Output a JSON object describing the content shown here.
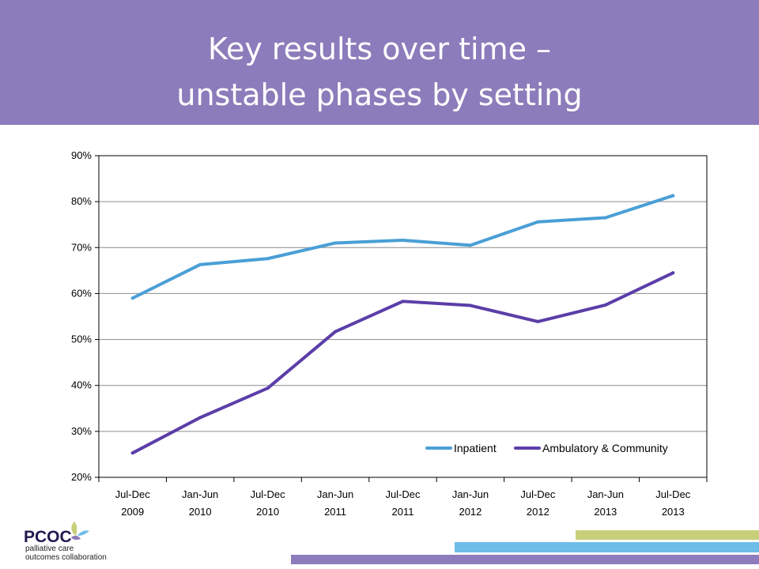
{
  "header": {
    "title_line1": "Key results over time –",
    "title_line2": "unstable phases by setting",
    "background": "#8d7cbb"
  },
  "chart_data": {
    "type": "line",
    "categories": [
      [
        "Jul-Dec",
        "2009"
      ],
      [
        "Jan-Jun",
        "2010"
      ],
      [
        "Jul-Dec",
        "2010"
      ],
      [
        "Jan-Jun",
        "2011"
      ],
      [
        "Jul-Dec",
        "2011"
      ],
      [
        "Jan-Jun",
        "2012"
      ],
      [
        "Jul-Dec",
        "2012"
      ],
      [
        "Jan-Jun",
        "2013"
      ],
      [
        "Jul-Dec",
        "2013"
      ]
    ],
    "series": [
      {
        "name": "Inpatient",
        "color": "#4a9fd6",
        "values": [
          59,
          66.3,
          67.6,
          71,
          71.6,
          70.5,
          75.6,
          76.5,
          81.3
        ]
      },
      {
        "name": "Ambulatory & Community",
        "color": "#5b3ea8",
        "values": [
          25.3,
          33,
          39.4,
          51.7,
          58.3,
          57.4,
          53.9,
          57.5,
          64.5
        ]
      }
    ],
    "yticks": [
      "20%",
      "30%",
      "40%",
      "50%",
      "60%",
      "70%",
      "80%",
      "90%"
    ],
    "ylim": [
      20,
      90
    ],
    "grid": true,
    "legend_position": "bottom-right"
  },
  "logo": {
    "name": "PCOC",
    "subtitle_line1": "palliative care",
    "subtitle_line2": "outcomes collaboration"
  }
}
